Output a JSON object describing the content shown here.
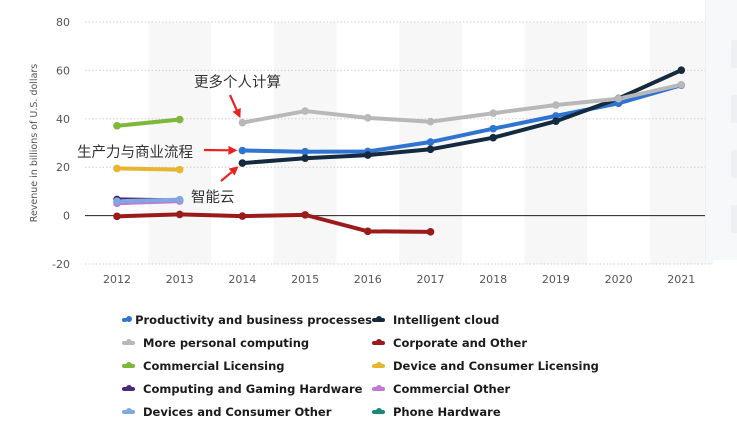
{
  "chart_data": {
    "type": "line",
    "title": "",
    "xlabel": "",
    "ylabel": "Revenue in billions of U.S. dollars",
    "ylim": [
      -20,
      80
    ],
    "yticks": [
      80,
      60,
      40,
      20,
      0,
      -20
    ],
    "categories": [
      "2012",
      "2013",
      "2014",
      "2015",
      "2016",
      "2017",
      "2018",
      "2019",
      "2020",
      "2021"
    ],
    "grid": "horizontal dotted, alternating column shading",
    "legend_position": "bottom",
    "series": [
      {
        "name": "Productivity and business processes",
        "color": "#2e74d0",
        "values": [
          null,
          null,
          26.9,
          26.4,
          26.5,
          30.4,
          35.9,
          41.2,
          46.4,
          53.9
        ]
      },
      {
        "name": "Intelligent cloud",
        "color": "#142a3e",
        "values": [
          null,
          null,
          21.7,
          23.7,
          25.0,
          27.4,
          32.2,
          39.0,
          48.4,
          60.1
        ]
      },
      {
        "name": "More personal computing",
        "color": "#b8b8b8",
        "values": [
          null,
          null,
          38.4,
          43.2,
          40.4,
          38.8,
          42.3,
          45.7,
          48.3,
          54.1
        ]
      },
      {
        "name": "Corporate and Other",
        "color": "#9b1a1a",
        "values": [
          -0.3,
          0.5,
          -0.2,
          0.3,
          -6.5,
          -6.7,
          null,
          null,
          null,
          null
        ]
      },
      {
        "name": "Commercial Licensing",
        "color": "#7db83a",
        "values": [
          37.1,
          39.7,
          null,
          null,
          null,
          null,
          null,
          null,
          null,
          null
        ]
      },
      {
        "name": "Device and Consumer Licensing",
        "color": "#e8b52e",
        "values": [
          19.5,
          19.0,
          null,
          null,
          null,
          null,
          null,
          null,
          null,
          null
        ]
      },
      {
        "name": "Computing and Gaming Hardware",
        "color": "#4a2a7a",
        "values": [
          6.7,
          6.3,
          null,
          null,
          null,
          null,
          null,
          null,
          null,
          null
        ]
      },
      {
        "name": "Commercial Other",
        "color": "#c377d8",
        "values": [
          5.1,
          6.0,
          null,
          null,
          null,
          null,
          null,
          null,
          null,
          null
        ]
      },
      {
        "name": "Devices and Consumer Other",
        "color": "#7fa8e0",
        "values": [
          5.9,
          6.6,
          null,
          null,
          null,
          null,
          null,
          null,
          null,
          null
        ]
      },
      {
        "name": "Phone Hardware",
        "color": "#1a8a78",
        "values": [
          null,
          null,
          null,
          null,
          null,
          null,
          null,
          null,
          null,
          null
        ]
      }
    ],
    "annotations": [
      {
        "text": "更多个人计算",
        "target_series": "More personal computing",
        "target_category": "2014"
      },
      {
        "text": "生产力与商业流程",
        "target_series": "Productivity and business processes",
        "target_category": "2014"
      },
      {
        "text": "智能云",
        "target_series": "Intelligent cloud",
        "target_category": "2014"
      }
    ]
  }
}
